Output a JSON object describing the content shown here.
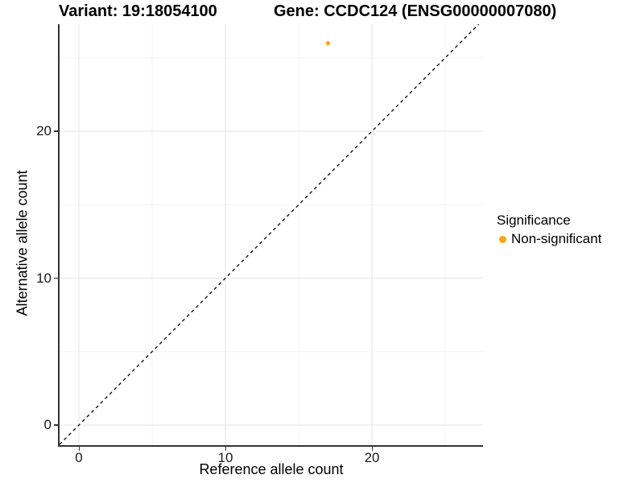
{
  "chart_data": {
    "type": "scatter",
    "titles": {
      "left": "Variant: 19:18054100",
      "right": "Gene: CCDC124 (ENSG00000007080)"
    },
    "xlabel": "Reference allele count",
    "ylabel": "Alternative allele count",
    "xlim": [
      -1.32,
      27.58
    ],
    "ylim": [
      -1.37,
      27.29
    ],
    "xticks": [
      0,
      10,
      20
    ],
    "yticks": [
      0,
      10,
      20
    ],
    "x_minor_gridlines": [
      5,
      15,
      25
    ],
    "y_minor_gridlines": [
      5,
      15,
      25
    ],
    "grid": true,
    "identity_line": {
      "equation": "y = x",
      "style": "dashed",
      "color": "#000000"
    },
    "points": [
      {
        "x": 17,
        "y": 26,
        "series": "Non-significant"
      }
    ],
    "legend": {
      "title": "Significance",
      "position": "right",
      "items": [
        {
          "label": "Non-significant",
          "color": "#FFA500"
        }
      ]
    },
    "colors": {
      "point": "#FFA500",
      "axis_line": "#333333",
      "grid_major": "#E9E9E9",
      "grid_minor": "#F5F5F5",
      "background": "#FFFFFF"
    }
  }
}
